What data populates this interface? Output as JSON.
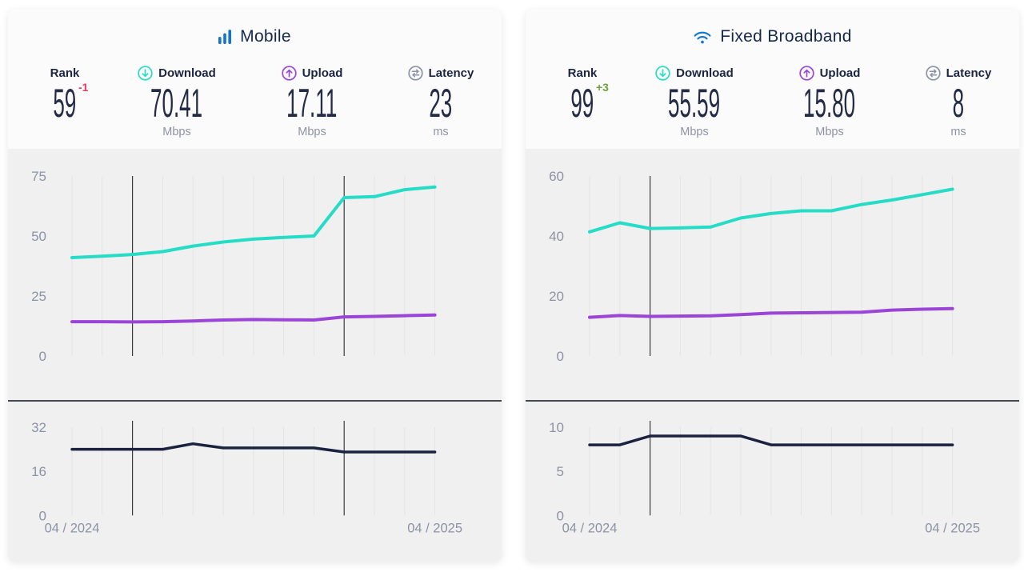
{
  "colors": {
    "brand_blue": "#1173d2",
    "download_teal": "#25dcc6",
    "upload_purple": "#9b45d8",
    "latency_navy": "#1b2240",
    "rank_down_red": "#e23c5f",
    "rank_up_green": "#6ea33c",
    "chart_bg": "#f0f0f0",
    "gridline": "#e4e4e4",
    "marker_line": "#3b3b3b",
    "axis_text": "#8c93a6"
  },
  "panels": [
    {
      "title": "Mobile",
      "title_icon": "mobile-bars-icon",
      "stats": [
        {
          "label": "Rank",
          "value": "59",
          "change": "-1",
          "unit": ""
        },
        {
          "label": "Download",
          "value": "70.41",
          "unit": "Mbps"
        },
        {
          "label": "Upload",
          "value": "17.11",
          "unit": "Mbps"
        },
        {
          "label": "Latency",
          "value": "23",
          "unit": "ms"
        }
      ]
    },
    {
      "title": "Fixed Broadband",
      "title_icon": "wifi-icon",
      "stats": [
        {
          "label": "Rank",
          "value": "99",
          "change": "+3",
          "unit": ""
        },
        {
          "label": "Download",
          "value": "55.59",
          "unit": "Mbps"
        },
        {
          "label": "Upload",
          "value": "15.80",
          "unit": "Mbps"
        },
        {
          "label": "Latency",
          "value": "8",
          "unit": "ms"
        }
      ]
    }
  ],
  "chart_data": [
    {
      "id": "mobile-speed",
      "type": "line",
      "panel": "Mobile",
      "x": [
        "04/2024",
        "05/2024",
        "06/2024",
        "07/2024",
        "08/2024",
        "09/2024",
        "10/2024",
        "11/2024",
        "12/2024",
        "01/2025",
        "02/2025",
        "03/2025",
        "04/2025"
      ],
      "ticks": [
        75,
        50,
        25,
        0
      ],
      "ylim": [
        0,
        75
      ],
      "grid": "vertical-only",
      "marker_indices": [
        2,
        9
      ],
      "series": [
        {
          "name": "Download",
          "color": "#25dcc6",
          "values": [
            41.0,
            41.6,
            42.3,
            43.5,
            45.8,
            47.5,
            48.7,
            49.4,
            50.0,
            66.0,
            66.4,
            69.3,
            70.41
          ]
        },
        {
          "name": "Upload",
          "color": "#9b45d8",
          "values": [
            14.3,
            14.3,
            14.2,
            14.3,
            14.6,
            15.0,
            15.2,
            15.1,
            15.0,
            16.3,
            16.5,
            16.8,
            17.11
          ]
        }
      ]
    },
    {
      "id": "mobile-latency",
      "type": "line",
      "panel": "Mobile",
      "x": [
        "04/2024",
        "05/2024",
        "06/2024",
        "07/2024",
        "08/2024",
        "09/2024",
        "10/2024",
        "11/2024",
        "12/2024",
        "01/2025",
        "02/2025",
        "03/2025",
        "04/2025"
      ],
      "ticks": [
        32,
        16,
        0
      ],
      "ylim": [
        0,
        32
      ],
      "grid": "vertical-only",
      "marker_indices": [
        2,
        9
      ],
      "xlabel_left": "04 / 2024",
      "xlabel_right": "04 / 2025",
      "series": [
        {
          "name": "Latency",
          "color": "#1b2240",
          "values": [
            24,
            24,
            24,
            24,
            26,
            24.5,
            24.5,
            24.5,
            24.5,
            23,
            23,
            23,
            23
          ]
        }
      ]
    },
    {
      "id": "fixed-speed",
      "type": "line",
      "panel": "Fixed Broadband",
      "x": [
        "04/2024",
        "05/2024",
        "06/2024",
        "07/2024",
        "08/2024",
        "09/2024",
        "10/2024",
        "11/2024",
        "12/2024",
        "01/2025",
        "02/2025",
        "03/2025",
        "04/2025"
      ],
      "ticks": [
        60,
        40,
        20,
        0
      ],
      "ylim": [
        0,
        60
      ],
      "grid": "vertical-only",
      "marker_indices": [
        2
      ],
      "series": [
        {
          "name": "Download",
          "color": "#25dcc6",
          "values": [
            41.4,
            44.4,
            42.5,
            42.7,
            43.0,
            46.0,
            47.5,
            48.4,
            48.4,
            50.5,
            52.0,
            53.8,
            55.59
          ]
        },
        {
          "name": "Upload",
          "color": "#9b45d8",
          "values": [
            12.9,
            13.5,
            13.2,
            13.3,
            13.4,
            13.8,
            14.3,
            14.4,
            14.5,
            14.6,
            15.3,
            15.6,
            15.8
          ]
        }
      ]
    },
    {
      "id": "fixed-latency",
      "type": "line",
      "panel": "Fixed Broadband",
      "x": [
        "04/2024",
        "05/2024",
        "06/2024",
        "07/2024",
        "08/2024",
        "09/2024",
        "10/2024",
        "11/2024",
        "12/2024",
        "01/2025",
        "02/2025",
        "03/2025",
        "04/2025"
      ],
      "ticks": [
        10,
        5,
        0
      ],
      "ylim": [
        0,
        10
      ],
      "grid": "vertical-only",
      "marker_indices": [
        2
      ],
      "xlabel_left": "04 / 2024",
      "xlabel_right": "04 / 2025",
      "series": [
        {
          "name": "Latency",
          "color": "#1b2240",
          "values": [
            8,
            8,
            9,
            9,
            9,
            9,
            8,
            8,
            8,
            8,
            8,
            8,
            8
          ]
        }
      ]
    }
  ]
}
